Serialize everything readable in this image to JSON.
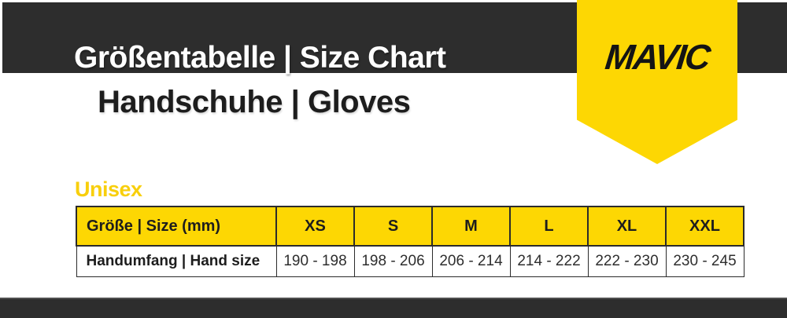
{
  "header": {
    "title": "Größentabelle | Size Chart",
    "subtitle": "Handschuhe | Gloves",
    "logo_text": "MAVIC"
  },
  "section_title": "Unisex",
  "size_table": {
    "columns": [
      "Größe | Size (mm)",
      "XS",
      "S",
      "M",
      "L",
      "XL",
      "XXL"
    ],
    "rows": [
      {
        "label": "Handumfang | Hand size",
        "values": [
          "190 - 198",
          "198 - 206",
          "206 - 214",
          "214 - 222",
          "222 - 230",
          "230 - 245"
        ]
      }
    ]
  },
  "colors": {
    "brand_yellow": "#fdd703",
    "bar_dark": "#2d2d2d",
    "title_white": "#ffffff",
    "text_black": "#1d1d1d"
  }
}
